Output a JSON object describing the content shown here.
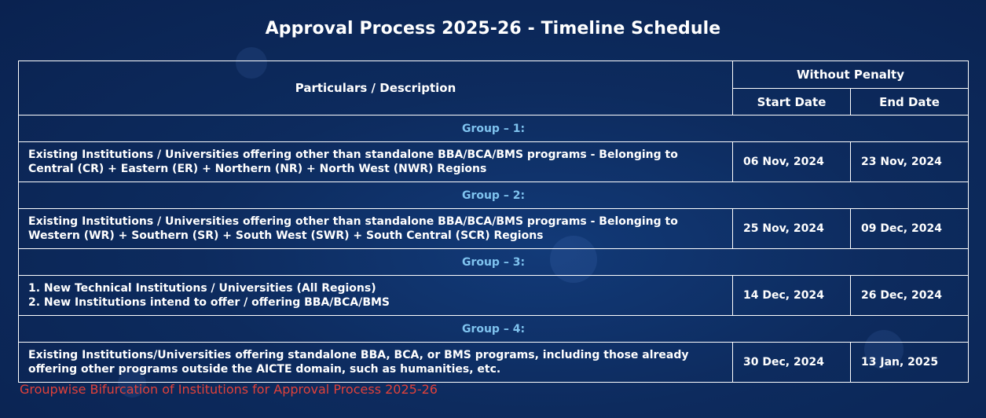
{
  "page": {
    "title": "Approval Process 2025-26 - Timeline Schedule",
    "footer_note": "Groupwise Bifurcation of Institutions for Approval Process 2025-26"
  },
  "table": {
    "header": {
      "description": "Particulars / Description",
      "penalty_group": "Without Penalty",
      "start_date": "Start Date",
      "end_date": "End Date"
    },
    "groups": [
      {
        "label": "Group – 1:",
        "lines": [
          "Existing Institutions / Universities offering other than standalone BBA/BCA/BMS programs - Belonging to Central (CR) + Eastern (ER) + Northern (NR) + North West (NWR) Regions"
        ],
        "start": "06 Nov, 2024",
        "end": "23 Nov, 2024"
      },
      {
        "label": "Group – 2:",
        "lines": [
          "Existing Institutions / Universities offering other than standalone BBA/BCA/BMS programs - Belonging to Western (WR) + Southern (SR) + South West (SWR) + South Central (SCR) Regions"
        ],
        "start": "25 Nov, 2024",
        "end": "09 Dec, 2024"
      },
      {
        "label": "Group – 3:",
        "lines": [
          "1. New Technical Institutions / Universities (All Regions)",
          "2. New Institutions intend to offer / offering BBA/BCA/BMS"
        ],
        "start": "14 Dec, 2024",
        "end": "26 Dec, 2024"
      },
      {
        "label": "Group – 4:",
        "lines": [
          "Existing Institutions/Universities offering standalone BBA, BCA, or BMS programs, including those already offering other programs outside the AICTE domain, such as humanities, etc."
        ],
        "start": "30 Dec, 2024",
        "end": "13 Jan, 2025"
      }
    ]
  },
  "colors": {
    "background": "#0d2b5e",
    "group_label": "#7fc3ef",
    "footer_note": "#e0413a",
    "border": "#ffffff"
  }
}
